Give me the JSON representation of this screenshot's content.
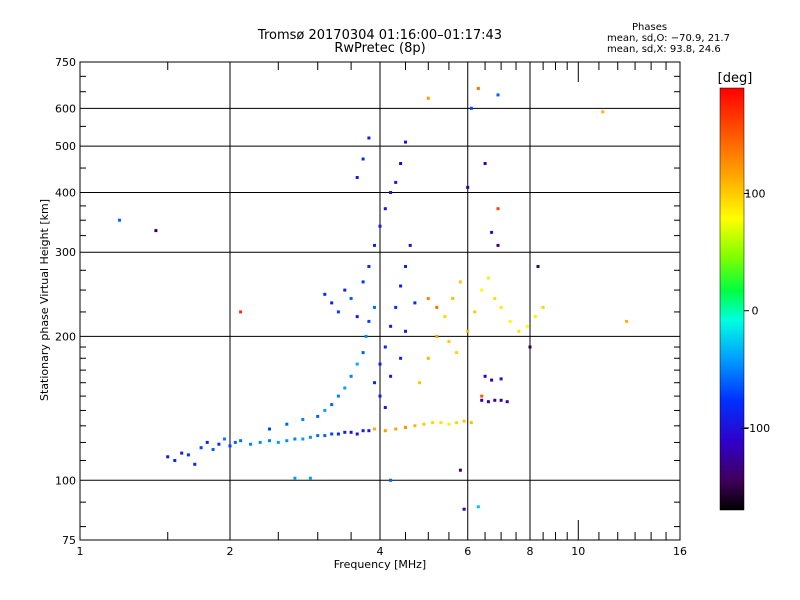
{
  "header": {
    "title_line1": "Tromsø 20170304 01:16:00–01:17:43",
    "title_line2": "RwPretec (8p)"
  },
  "phase_info": {
    "title": "Phases",
    "o_mode": "mean, sd,O: −70.9, 21.7",
    "x_mode": "mean, sd,X:  93.8, 24.6"
  },
  "colorbar": {
    "label": "[deg]",
    "range": [
      -170,
      190
    ],
    "ticks": [
      {
        "value": 100,
        "label": "100"
      },
      {
        "value": 0,
        "label": "0"
      },
      {
        "value": -100,
        "label": "−100"
      }
    ]
  },
  "chart_data": {
    "type": "scatter",
    "title": "Tromsø 20170304 01:16:00–01:17:43",
    "subtitle": "RwPretec (8p)",
    "xlabel": "Frequency [MHz]",
    "ylabel": "Stationary phase Virtual Height [km]",
    "xscale": "log",
    "yscale": "log",
    "xlim": [
      1,
      16
    ],
    "ylim": [
      75,
      750
    ],
    "grid": true,
    "xticks": [
      {
        "value": 1,
        "label": "1"
      },
      {
        "value": 2,
        "label": "2"
      },
      {
        "value": 4,
        "label": "4"
      },
      {
        "value": 6,
        "label": "6"
      },
      {
        "value": 8,
        "label": "8"
      },
      {
        "value": 10,
        "label": "10"
      },
      {
        "value": 16,
        "label": "16"
      }
    ],
    "yticks": [
      {
        "value": 75,
        "label": "75"
      },
      {
        "value": 100,
        "label": "100"
      },
      {
        "value": 200,
        "label": "200"
      },
      {
        "value": 300,
        "label": "300"
      },
      {
        "value": 400,
        "label": "400"
      },
      {
        "value": 500,
        "label": "500"
      },
      {
        "value": 600,
        "label": "600"
      },
      {
        "value": 750,
        "label": "750"
      }
    ],
    "x_gridlines": [
      2,
      4,
      6,
      8
    ],
    "y_gridlines": [
      100,
      200,
      300,
      400,
      500,
      600
    ],
    "color_variable": "phase [deg]",
    "series": [
      {
        "points": [
          {
            "x": 1.5,
            "y": 112,
            "c": -95
          },
          {
            "x": 1.55,
            "y": 110,
            "c": -80
          },
          {
            "x": 1.6,
            "y": 114,
            "c": -90
          },
          {
            "x": 1.65,
            "y": 113,
            "c": -75
          },
          {
            "x": 1.7,
            "y": 108,
            "c": -85
          },
          {
            "x": 1.75,
            "y": 117,
            "c": -70
          },
          {
            "x": 1.8,
            "y": 120,
            "c": -90
          },
          {
            "x": 1.85,
            "y": 116,
            "c": -60
          },
          {
            "x": 1.9,
            "y": 119,
            "c": -80
          },
          {
            "x": 1.95,
            "y": 122,
            "c": -50
          },
          {
            "x": 2.0,
            "y": 118,
            "c": -70
          },
          {
            "x": 2.05,
            "y": 120,
            "c": -60
          },
          {
            "x": 2.1,
            "y": 121,
            "c": -55
          },
          {
            "x": 2.2,
            "y": 119,
            "c": -50
          },
          {
            "x": 2.3,
            "y": 120,
            "c": -45
          },
          {
            "x": 2.4,
            "y": 121,
            "c": -50
          },
          {
            "x": 2.5,
            "y": 120,
            "c": -40
          },
          {
            "x": 2.6,
            "y": 121,
            "c": -45
          },
          {
            "x": 2.7,
            "y": 122,
            "c": -50
          },
          {
            "x": 2.8,
            "y": 122,
            "c": -40
          },
          {
            "x": 2.9,
            "y": 123,
            "c": -45
          },
          {
            "x": 3.0,
            "y": 124,
            "c": -55
          },
          {
            "x": 3.1,
            "y": 124,
            "c": -60
          },
          {
            "x": 3.2,
            "y": 125,
            "c": -70
          },
          {
            "x": 3.3,
            "y": 125,
            "c": -80
          },
          {
            "x": 3.4,
            "y": 126,
            "c": -90
          },
          {
            "x": 3.5,
            "y": 126,
            "c": -95
          },
          {
            "x": 3.6,
            "y": 125,
            "c": -100
          },
          {
            "x": 3.7,
            "y": 127,
            "c": -90
          },
          {
            "x": 3.8,
            "y": 127,
            "c": -95
          },
          {
            "x": 2.4,
            "y": 128,
            "c": -70
          },
          {
            "x": 2.6,
            "y": 131,
            "c": -60
          },
          {
            "x": 2.8,
            "y": 134,
            "c": -50
          },
          {
            "x": 3.0,
            "y": 136,
            "c": -60
          },
          {
            "x": 3.1,
            "y": 140,
            "c": -40
          },
          {
            "x": 3.2,
            "y": 144,
            "c": -60
          },
          {
            "x": 3.3,
            "y": 150,
            "c": -50
          },
          {
            "x": 3.4,
            "y": 156,
            "c": -40
          },
          {
            "x": 3.5,
            "y": 165,
            "c": -50
          },
          {
            "x": 3.6,
            "y": 175,
            "c": -35
          },
          {
            "x": 3.7,
            "y": 185,
            "c": -60
          },
          {
            "x": 3.75,
            "y": 200,
            "c": -45
          },
          {
            "x": 3.8,
            "y": 215,
            "c": -70
          },
          {
            "x": 3.9,
            "y": 230,
            "c": -55
          },
          {
            "x": 3.1,
            "y": 245,
            "c": -80
          },
          {
            "x": 3.2,
            "y": 235,
            "c": -90
          },
          {
            "x": 3.3,
            "y": 225,
            "c": -70
          },
          {
            "x": 3.4,
            "y": 250,
            "c": -85
          },
          {
            "x": 3.5,
            "y": 240,
            "c": -60
          },
          {
            "x": 3.6,
            "y": 220,
            "c": -90
          },
          {
            "x": 3.7,
            "y": 260,
            "c": -75
          },
          {
            "x": 3.8,
            "y": 280,
            "c": -80
          },
          {
            "x": 3.9,
            "y": 310,
            "c": -85
          },
          {
            "x": 4.0,
            "y": 340,
            "c": -90
          },
          {
            "x": 4.1,
            "y": 370,
            "c": -95
          },
          {
            "x": 4.2,
            "y": 400,
            "c": -100
          },
          {
            "x": 4.3,
            "y": 420,
            "c": -90
          },
          {
            "x": 4.4,
            "y": 460,
            "c": -110
          },
          {
            "x": 4.5,
            "y": 510,
            "c": -95
          },
          {
            "x": 3.6,
            "y": 430,
            "c": -95
          },
          {
            "x": 3.7,
            "y": 470,
            "c": -85
          },
          {
            "x": 3.8,
            "y": 520,
            "c": -90
          },
          {
            "x": 3.9,
            "y": 160,
            "c": -80
          },
          {
            "x": 4.0,
            "y": 175,
            "c": -90
          },
          {
            "x": 4.1,
            "y": 190,
            "c": -85
          },
          {
            "x": 4.2,
            "y": 210,
            "c": -95
          },
          {
            "x": 4.3,
            "y": 230,
            "c": -80
          },
          {
            "x": 4.4,
            "y": 255,
            "c": -90
          },
          {
            "x": 4.5,
            "y": 280,
            "c": -85
          },
          {
            "x": 4.6,
            "y": 310,
            "c": -100
          },
          {
            "x": 4.0,
            "y": 150,
            "c": -90
          },
          {
            "x": 4.1,
            "y": 142,
            "c": -95
          },
          {
            "x": 4.2,
            "y": 165,
            "c": -90
          },
          {
            "x": 4.4,
            "y": 180,
            "c": -85
          },
          {
            "x": 4.5,
            "y": 205,
            "c": -90
          },
          {
            "x": 4.7,
            "y": 235,
            "c": -80
          },
          {
            "x": 3.9,
            "y": 128,
            "c": 110
          },
          {
            "x": 4.1,
            "y": 127,
            "c": 120
          },
          {
            "x": 4.3,
            "y": 128,
            "c": 115
          },
          {
            "x": 4.5,
            "y": 129,
            "c": 125
          },
          {
            "x": 4.7,
            "y": 130,
            "c": 110
          },
          {
            "x": 4.9,
            "y": 131,
            "c": 100
          },
          {
            "x": 5.1,
            "y": 132,
            "c": 95
          },
          {
            "x": 5.3,
            "y": 132,
            "c": 90
          },
          {
            "x": 5.5,
            "y": 131,
            "c": 85
          },
          {
            "x": 5.7,
            "y": 132,
            "c": 95
          },
          {
            "x": 5.9,
            "y": 133,
            "c": 100
          },
          {
            "x": 6.1,
            "y": 132,
            "c": 105
          },
          {
            "x": 4.8,
            "y": 160,
            "c": 100
          },
          {
            "x": 5.0,
            "y": 180,
            "c": 110
          },
          {
            "x": 5.2,
            "y": 200,
            "c": 120
          },
          {
            "x": 5.4,
            "y": 220,
            "c": 95
          },
          {
            "x": 5.6,
            "y": 240,
            "c": 105
          },
          {
            "x": 5.8,
            "y": 260,
            "c": 100
          },
          {
            "x": 5.0,
            "y": 240,
            "c": 130
          },
          {
            "x": 5.2,
            "y": 230,
            "c": 140
          },
          {
            "x": 5.5,
            "y": 195,
            "c": 100
          },
          {
            "x": 5.7,
            "y": 185,
            "c": 95
          },
          {
            "x": 6.0,
            "y": 205,
            "c": 110
          },
          {
            "x": 6.2,
            "y": 225,
            "c": 100
          },
          {
            "x": 6.4,
            "y": 250,
            "c": 80
          },
          {
            "x": 6.6,
            "y": 265,
            "c": 70
          },
          {
            "x": 6.8,
            "y": 240,
            "c": 90
          },
          {
            "x": 7.0,
            "y": 230,
            "c": 85
          },
          {
            "x": 7.3,
            "y": 215,
            "c": 75
          },
          {
            "x": 7.6,
            "y": 205,
            "c": 90
          },
          {
            "x": 7.9,
            "y": 210,
            "c": 80
          },
          {
            "x": 8.2,
            "y": 220,
            "c": 70
          },
          {
            "x": 8.5,
            "y": 230,
            "c": 95
          },
          {
            "x": 6.4,
            "y": 147,
            "c": -120
          },
          {
            "x": 6.6,
            "y": 146,
            "c": -115
          },
          {
            "x": 6.8,
            "y": 147,
            "c": -125
          },
          {
            "x": 7.0,
            "y": 147,
            "c": -120
          },
          {
            "x": 7.2,
            "y": 146,
            "c": -118
          },
          {
            "x": 6.5,
            "y": 165,
            "c": -110
          },
          {
            "x": 6.7,
            "y": 162,
            "c": -120
          },
          {
            "x": 7.0,
            "y": 163,
            "c": -100
          },
          {
            "x": 4.2,
            "y": 100,
            "c": -60
          },
          {
            "x": 5.8,
            "y": 105,
            "c": -140
          },
          {
            "x": 5.9,
            "y": 87,
            "c": -120
          },
          {
            "x": 6.3,
            "y": 88,
            "c": -30
          },
          {
            "x": 5.0,
            "y": 630,
            "c": 120
          },
          {
            "x": 6.1,
            "y": 600,
            "c": -70
          },
          {
            "x": 6.3,
            "y": 660,
            "c": 140
          },
          {
            "x": 6.9,
            "y": 640,
            "c": -60
          },
          {
            "x": 11.2,
            "y": 590,
            "c": 110
          },
          {
            "x": 12.5,
            "y": 215,
            "c": 110
          },
          {
            "x": 1.2,
            "y": 350,
            "c": -60
          },
          {
            "x": 1.42,
            "y": 333,
            "c": -150
          },
          {
            "x": 2.1,
            "y": 225,
            "c": 170
          },
          {
            "x": 2.7,
            "y": 101,
            "c": -40
          },
          {
            "x": 2.9,
            "y": 101,
            "c": -40
          },
          {
            "x": 8.0,
            "y": 190,
            "c": -150
          },
          {
            "x": 8.3,
            "y": 280,
            "c": -140
          },
          {
            "x": 6.4,
            "y": 150,
            "c": 150
          },
          {
            "x": 6.7,
            "y": 330,
            "c": -100
          },
          {
            "x": 6.9,
            "y": 310,
            "c": -140
          },
          {
            "x": 6.0,
            "y": 410,
            "c": -130
          },
          {
            "x": 6.5,
            "y": 460,
            "c": -120
          },
          {
            "x": 6.9,
            "y": 370,
            "c": 160
          }
        ]
      }
    ]
  }
}
